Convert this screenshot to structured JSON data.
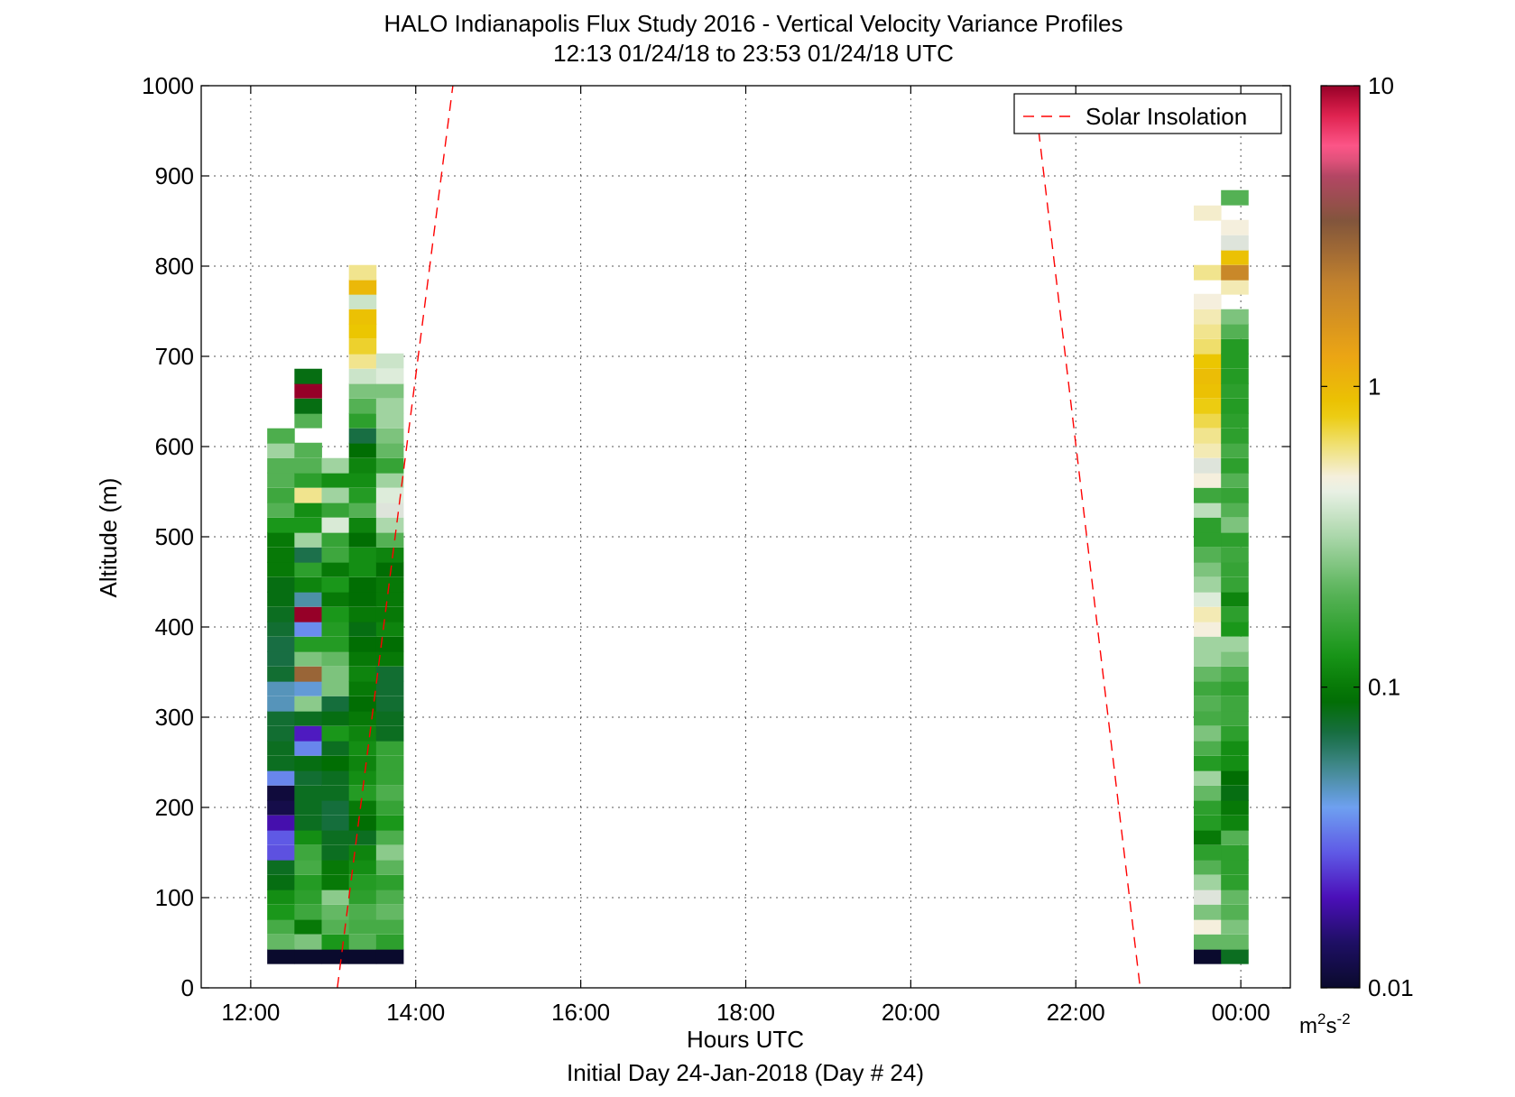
{
  "chart_data": {
    "type": "heatmap",
    "title": "HALO Indianapolis Flux Study 2016 - Vertical Velocity Variance Profiles",
    "subtitle": "12:13 01/24/18 to 23:53 01/24/18  UTC",
    "xlabel": "Hours UTC",
    "xlabel2": "Initial Day 24-Jan-2018 (Day # 24)",
    "ylabel": "Altitude (m)",
    "x_unit": "hours",
    "xlim": [
      11.4,
      24.6
    ],
    "ylim": [
      0,
      1000
    ],
    "x_ticks": [
      12,
      14,
      16,
      18,
      20,
      22,
      24
    ],
    "x_tick_labels": [
      "12:00",
      "14:00",
      "16:00",
      "18:00",
      "20:00",
      "22:00",
      "00:00"
    ],
    "y_ticks": [
      0,
      100,
      200,
      300,
      400,
      500,
      600,
      700,
      800,
      900,
      1000
    ],
    "y_tick_labels": [
      "0",
      "100",
      "200",
      "300",
      "400",
      "500",
      "600",
      "700",
      "800",
      "900",
      "1000"
    ],
    "grid": true,
    "legend": {
      "position": "top-right",
      "entries": [
        {
          "name": "Solar Insolation",
          "style": "dashed",
          "color": "#ff0000"
        }
      ]
    },
    "colorbar": {
      "scale": "log",
      "range": [
        0.01,
        10
      ],
      "tick_values": [
        0.01,
        0.1,
        1,
        10
      ],
      "tick_labels": [
        "0.01",
        "0.1",
        "1",
        "10"
      ],
      "unit_base": "m",
      "unit_sup1": "2",
      "unit_mid": "s",
      "unit_sup2": "-2"
    },
    "cell_height_m": 16.5,
    "columns": [
      {
        "x": 12.2,
        "width": 0.33,
        "cells": [
          [
            35,
            0.01
          ],
          [
            51,
            0.22
          ],
          [
            68,
            0.18
          ],
          [
            84,
            0.13
          ],
          [
            101,
            0.12
          ],
          [
            117,
            0.085
          ],
          [
            134,
            0.08
          ],
          [
            150,
            0.027
          ],
          [
            167,
            0.028
          ],
          [
            183,
            0.019
          ],
          [
            200,
            0.012
          ],
          [
            216,
            0.011
          ],
          [
            233,
            0.035
          ],
          [
            249,
            0.08
          ],
          [
            266,
            0.08
          ],
          [
            282,
            0.075
          ],
          [
            299,
            0.075
          ],
          [
            315,
            0.047
          ],
          [
            332,
            0.047
          ],
          [
            348,
            0.075
          ],
          [
            365,
            0.07
          ],
          [
            381,
            0.07
          ],
          [
            398,
            0.075
          ],
          [
            414,
            0.08
          ],
          [
            431,
            0.085
          ],
          [
            447,
            0.085
          ],
          [
            464,
            0.1
          ],
          [
            480,
            0.1
          ],
          [
            497,
            0.1
          ],
          [
            513,
            0.13
          ],
          [
            530,
            0.2
          ],
          [
            546,
            0.17
          ],
          [
            563,
            0.2
          ],
          [
            579,
            0.2
          ],
          [
            596,
            0.3
          ],
          [
            612,
            0.19
          ]
        ]
      },
      {
        "x": 12.53,
        "width": 0.33,
        "cells": [
          [
            35,
            0.01
          ],
          [
            51,
            0.25
          ],
          [
            68,
            0.1
          ],
          [
            84,
            0.17
          ],
          [
            101,
            0.15
          ],
          [
            117,
            0.14
          ],
          [
            134,
            0.18
          ],
          [
            150,
            0.17
          ],
          [
            167,
            0.12
          ],
          [
            183,
            0.08
          ],
          [
            200,
            0.08
          ],
          [
            216,
            0.08
          ],
          [
            233,
            0.075
          ],
          [
            249,
            0.085
          ],
          [
            266,
            0.035
          ],
          [
            282,
            0.021
          ],
          [
            299,
            0.08
          ],
          [
            315,
            0.27
          ],
          [
            332,
            0.043
          ],
          [
            348,
            3.0
          ],
          [
            365,
            0.25
          ],
          [
            381,
            0.14
          ],
          [
            398,
            0.036
          ],
          [
            414,
            10
          ],
          [
            431,
            0.05
          ],
          [
            447,
            0.11
          ],
          [
            464,
            0.15
          ],
          [
            480,
            0.068
          ],
          [
            497,
            0.3
          ],
          [
            513,
            0.13
          ],
          [
            530,
            0.12
          ],
          [
            546,
            0.6
          ],
          [
            563,
            0.15
          ],
          [
            579,
            0.2
          ],
          [
            596,
            0.2
          ],
          [
            629,
            0.2
          ],
          [
            645,
            0.085
          ],
          [
            662,
            10
          ],
          [
            678,
            0.085
          ]
        ]
      },
      {
        "x": 12.86,
        "width": 0.33,
        "cells": [
          [
            35,
            0.01
          ],
          [
            51,
            0.13
          ],
          [
            68,
            0.2
          ],
          [
            84,
            0.22
          ],
          [
            101,
            0.27
          ],
          [
            117,
            0.1
          ],
          [
            134,
            0.1
          ],
          [
            150,
            0.08
          ],
          [
            167,
            0.08
          ],
          [
            183,
            0.072
          ],
          [
            200,
            0.072
          ],
          [
            216,
            0.08
          ],
          [
            233,
            0.08
          ],
          [
            249,
            0.09
          ],
          [
            266,
            0.08
          ],
          [
            282,
            0.13
          ],
          [
            299,
            0.085
          ],
          [
            315,
            0.072
          ],
          [
            332,
            0.25
          ],
          [
            348,
            0.25
          ],
          [
            365,
            0.22
          ],
          [
            381,
            0.14
          ],
          [
            398,
            0.14
          ],
          [
            414,
            0.13
          ],
          [
            431,
            0.1
          ],
          [
            447,
            0.13
          ],
          [
            464,
            0.1
          ],
          [
            480,
            0.17
          ],
          [
            497,
            0.16
          ],
          [
            513,
            0.41
          ],
          [
            530,
            0.16
          ],
          [
            546,
            0.3
          ],
          [
            563,
            0.12
          ],
          [
            579,
            0.3
          ]
        ]
      },
      {
        "x": 13.19,
        "width": 0.33,
        "cells": [
          [
            35,
            0.01
          ],
          [
            51,
            0.2
          ],
          [
            68,
            0.18
          ],
          [
            84,
            0.19
          ],
          [
            101,
            0.15
          ],
          [
            117,
            0.14
          ],
          [
            134,
            0.12
          ],
          [
            150,
            0.11
          ],
          [
            167,
            0.08
          ],
          [
            183,
            0.09
          ],
          [
            200,
            0.1
          ],
          [
            216,
            0.14
          ],
          [
            233,
            0.12
          ],
          [
            249,
            0.11
          ],
          [
            266,
            0.12
          ],
          [
            282,
            0.11
          ],
          [
            299,
            0.1
          ],
          [
            315,
            0.09
          ],
          [
            332,
            0.1
          ],
          [
            348,
            0.11
          ],
          [
            365,
            0.1
          ],
          [
            381,
            0.09
          ],
          [
            398,
            0.085
          ],
          [
            414,
            0.1
          ],
          [
            431,
            0.09
          ],
          [
            447,
            0.09
          ],
          [
            464,
            0.12
          ],
          [
            480,
            0.12
          ],
          [
            497,
            0.09
          ],
          [
            513,
            0.11
          ],
          [
            530,
            0.2
          ],
          [
            546,
            0.14
          ],
          [
            563,
            0.12
          ],
          [
            579,
            0.11
          ],
          [
            596,
            0.09
          ],
          [
            612,
            0.07
          ],
          [
            629,
            0.15
          ],
          [
            645,
            0.2
          ],
          [
            662,
            0.25
          ],
          [
            678,
            0.38
          ],
          [
            695,
            0.6
          ],
          [
            711,
            0.75
          ],
          [
            728,
            0.85
          ],
          [
            744,
            0.9
          ],
          [
            761,
            0.38
          ],
          [
            777,
            1.0
          ],
          [
            793,
            0.6
          ]
        ]
      },
      {
        "x": 13.52,
        "width": 0.33,
        "cells": [
          [
            35,
            0.01
          ],
          [
            51,
            0.15
          ],
          [
            68,
            0.18
          ],
          [
            84,
            0.22
          ],
          [
            101,
            0.19
          ],
          [
            117,
            0.15
          ],
          [
            134,
            0.21
          ],
          [
            150,
            0.27
          ],
          [
            167,
            0.19
          ],
          [
            183,
            0.13
          ],
          [
            200,
            0.16
          ],
          [
            216,
            0.19
          ],
          [
            233,
            0.16
          ],
          [
            249,
            0.16
          ],
          [
            266,
            0.16
          ],
          [
            282,
            0.08
          ],
          [
            299,
            0.08
          ],
          [
            315,
            0.075
          ],
          [
            332,
            0.075
          ],
          [
            348,
            0.075
          ],
          [
            365,
            0.1
          ],
          [
            381,
            0.09
          ],
          [
            398,
            0.11
          ],
          [
            414,
            0.1
          ],
          [
            431,
            0.1
          ],
          [
            447,
            0.1
          ],
          [
            464,
            0.09
          ],
          [
            480,
            0.11
          ],
          [
            497,
            0.2
          ],
          [
            513,
            0.32
          ],
          [
            530,
            0.45
          ],
          [
            546,
            0.42
          ],
          [
            563,
            0.3
          ],
          [
            579,
            0.16
          ],
          [
            596,
            0.22
          ],
          [
            612,
            0.25
          ],
          [
            629,
            0.3
          ],
          [
            645,
            0.3
          ],
          [
            662,
            0.25
          ],
          [
            678,
            0.42
          ],
          [
            695,
            0.38
          ]
        ]
      },
      {
        "x": 23.43,
        "width": 0.33,
        "cells": [
          [
            35,
            0.01
          ],
          [
            51,
            0.22
          ],
          [
            68,
            0.5
          ],
          [
            84,
            0.25
          ],
          [
            101,
            0.45
          ],
          [
            117,
            0.3
          ],
          [
            134,
            0.2
          ],
          [
            150,
            0.15
          ],
          [
            167,
            0.1
          ],
          [
            183,
            0.14
          ],
          [
            200,
            0.15
          ],
          [
            216,
            0.22
          ],
          [
            233,
            0.3
          ],
          [
            249,
            0.14
          ],
          [
            266,
            0.19
          ],
          [
            282,
            0.25
          ],
          [
            299,
            0.18
          ],
          [
            315,
            0.2
          ],
          [
            332,
            0.17
          ],
          [
            348,
            0.22
          ],
          [
            365,
            0.3
          ],
          [
            381,
            0.3
          ],
          [
            398,
            0.5
          ],
          [
            414,
            0.55
          ],
          [
            431,
            0.42
          ],
          [
            447,
            0.3
          ],
          [
            464,
            0.25
          ],
          [
            480,
            0.2
          ],
          [
            497,
            0.15
          ],
          [
            513,
            0.15
          ],
          [
            530,
            0.35
          ],
          [
            546,
            0.17
          ],
          [
            563,
            0.5
          ],
          [
            579,
            0.45
          ],
          [
            596,
            0.55
          ],
          [
            612,
            0.6
          ],
          [
            629,
            0.7
          ],
          [
            645,
            0.8
          ],
          [
            662,
            0.9
          ],
          [
            678,
            0.95
          ],
          [
            695,
            0.85
          ],
          [
            711,
            0.65
          ],
          [
            728,
            0.6
          ],
          [
            744,
            0.55
          ],
          [
            761,
            0.5
          ],
          [
            793,
            0.6
          ],
          [
            859,
            0.52
          ]
        ]
      },
      {
        "x": 23.76,
        "width": 0.33,
        "cells": [
          [
            35,
            0.08
          ],
          [
            51,
            0.22
          ],
          [
            68,
            0.25
          ],
          [
            84,
            0.2
          ],
          [
            101,
            0.22
          ],
          [
            117,
            0.15
          ],
          [
            134,
            0.15
          ],
          [
            150,
            0.15
          ],
          [
            167,
            0.2
          ],
          [
            183,
            0.11
          ],
          [
            200,
            0.1
          ],
          [
            216,
            0.085
          ],
          [
            233,
            0.09
          ],
          [
            249,
            0.12
          ],
          [
            266,
            0.12
          ],
          [
            282,
            0.15
          ],
          [
            299,
            0.17
          ],
          [
            315,
            0.17
          ],
          [
            332,
            0.15
          ],
          [
            348,
            0.18
          ],
          [
            365,
            0.25
          ],
          [
            381,
            0.3
          ],
          [
            398,
            0.13
          ],
          [
            414,
            0.15
          ],
          [
            431,
            0.11
          ],
          [
            447,
            0.16
          ],
          [
            464,
            0.16
          ],
          [
            480,
            0.17
          ],
          [
            497,
            0.15
          ],
          [
            513,
            0.25
          ],
          [
            530,
            0.2
          ],
          [
            546,
            0.16
          ],
          [
            563,
            0.2
          ],
          [
            579,
            0.15
          ],
          [
            596,
            0.18
          ],
          [
            612,
            0.15
          ],
          [
            629,
            0.15
          ],
          [
            645,
            0.14
          ],
          [
            662,
            0.15
          ],
          [
            678,
            0.14
          ],
          [
            695,
            0.14
          ],
          [
            711,
            0.14
          ],
          [
            728,
            0.2
          ],
          [
            744,
            0.25
          ],
          [
            777,
            0.55
          ],
          [
            793,
            2.0
          ],
          [
            810,
            0.9
          ],
          [
            826,
            0.45
          ],
          [
            843,
            0.5
          ],
          [
            876,
            0.2
          ]
        ]
      }
    ],
    "solar_insolation": [
      {
        "x": [
          13.05,
          14.45
        ],
        "y": [
          0,
          1000
        ]
      },
      {
        "x": [
          21.55,
          22.78
        ],
        "y": [
          950,
          0
        ]
      }
    ]
  }
}
